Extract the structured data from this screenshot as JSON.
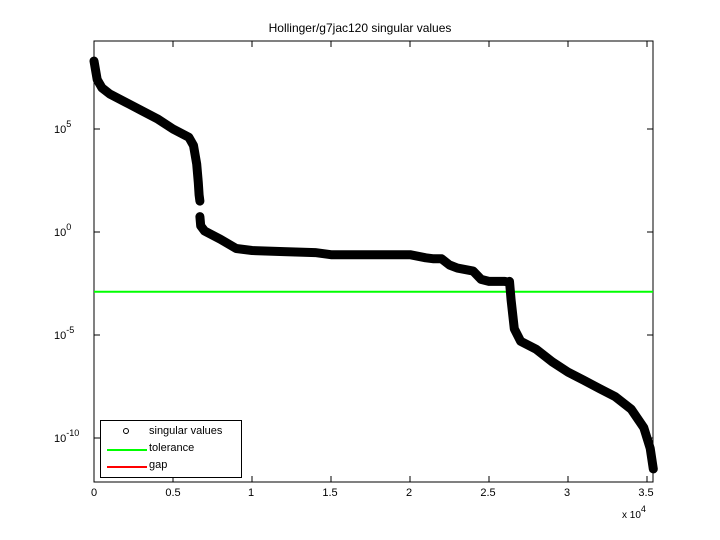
{
  "chart_data": {
    "type": "scatter",
    "title": "Hollinger/g7jac120 singular values",
    "xlabel": "",
    "ylabel": "",
    "x_multiplier": "x 10^4",
    "xlim": [
      0,
      35400
    ],
    "ylim_log10": [
      -12.1,
      9.3
    ],
    "yscale": "log",
    "grid": false,
    "legend_position": "lower left",
    "x_ticks": [
      "0",
      "0.5",
      "1",
      "1.5",
      "2",
      "2.5",
      "3",
      "3.5"
    ],
    "y_ticks": [
      "10^-10",
      "10^-5",
      "10^0",
      "10^5"
    ],
    "legend": [
      "singular values",
      "tolerance",
      "gap"
    ],
    "series": [
      {
        "name": "singular values",
        "marker": "o",
        "color": "#000000",
        "x": [
          0,
          200,
          500,
          1000,
          2000,
          3000,
          4000,
          5000,
          6000,
          6300,
          6500,
          6600,
          6650,
          6700,
          6700,
          6750,
          7000,
          8000,
          9000,
          10000,
          12000,
          14000,
          15000,
          17000,
          19000,
          20000,
          21000,
          21500,
          22000,
          22500,
          23000,
          24000,
          24500,
          25000,
          26000,
          26300,
          26300,
          26400,
          26600,
          27000,
          28000,
          29000,
          30000,
          31000,
          32000,
          33000,
          34000,
          34800,
          35200,
          35400
        ],
        "log10_y": [
          8.3,
          7.4,
          7.0,
          6.7,
          6.3,
          5.9,
          5.5,
          5.0,
          4.6,
          4.2,
          3.3,
          2.4,
          1.8,
          1.5,
          0.75,
          0.3,
          0.05,
          -0.35,
          -0.8,
          -0.9,
          -0.95,
          -1.0,
          -1.1,
          -1.1,
          -1.1,
          -1.1,
          -1.25,
          -1.3,
          -1.3,
          -1.6,
          -1.75,
          -1.9,
          -2.3,
          -2.4,
          -2.4,
          -2.45,
          -2.4,
          -3.3,
          -4.7,
          -5.3,
          -5.7,
          -6.3,
          -6.8,
          -7.2,
          -7.6,
          -8.0,
          -8.6,
          -9.5,
          -10.5,
          -11.5
        ]
      },
      {
        "name": "tolerance",
        "type": "hline",
        "color": "#00ff00",
        "log10_y": -2.9
      },
      {
        "name": "gap",
        "type": "line",
        "color": "#ff0000",
        "note": "not visible in plot area"
      }
    ]
  },
  "figure": {
    "title": "Hollinger/g7jac120 singular values",
    "x_tick_labels": [
      "0",
      "0.5",
      "1",
      "1.5",
      "2",
      "2.5",
      "3",
      "3.5"
    ],
    "y_tick_labels": [
      {
        "base": "10",
        "exp": "5"
      },
      {
        "base": "10",
        "exp": "0"
      },
      {
        "base": "10",
        "exp": "-5"
      },
      {
        "base": "10",
        "exp": "-10"
      }
    ],
    "x_multiplier_base": "x 10",
    "x_multiplier_exp": "4",
    "legend": {
      "singular_values": "singular values",
      "tolerance": "tolerance",
      "gap": "gap"
    },
    "colors": {
      "points": "#000000",
      "tolerance": "#00ff00",
      "gap": "#ff0000",
      "axes": "#000000"
    }
  }
}
